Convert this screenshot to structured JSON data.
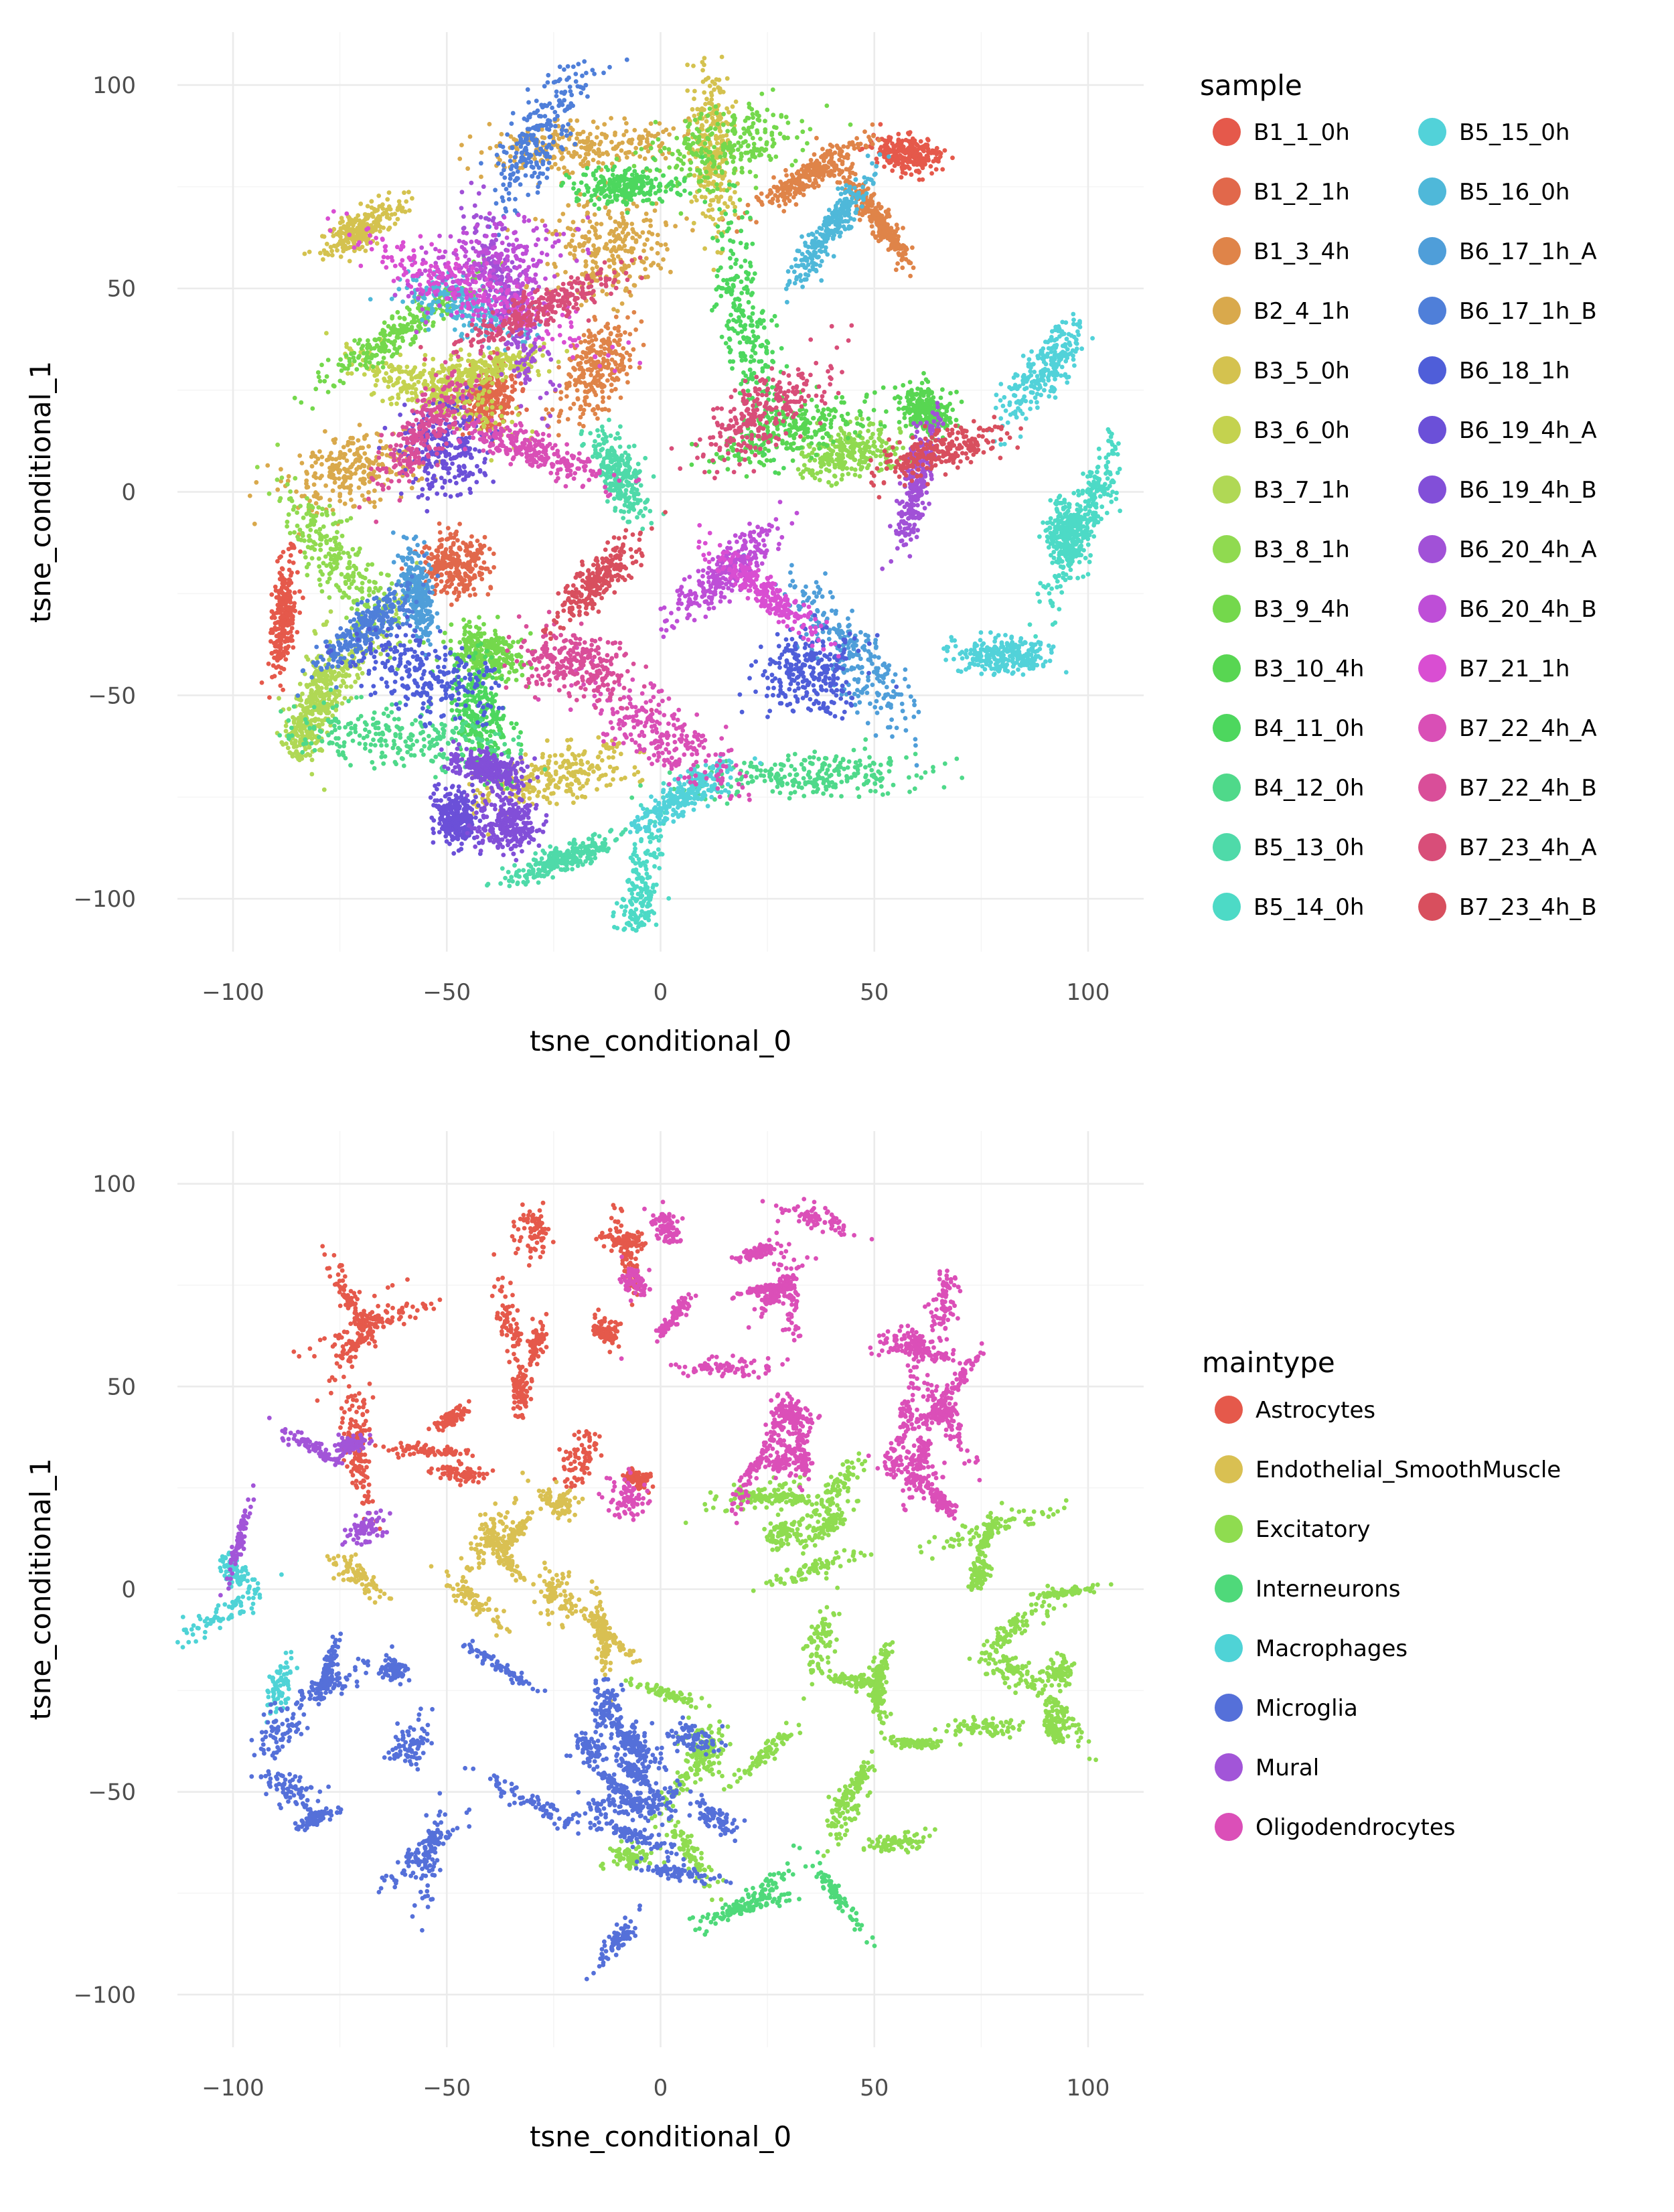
{
  "chart_data": [
    {
      "type": "scatter",
      "title": "",
      "xlabel": "tsne_conditional_0",
      "ylabel": "tsne_conditional_1",
      "xlim": [
        -113,
        113
      ],
      "ylim": [
        -113,
        113
      ],
      "x_ticks": [
        -100,
        -50,
        0,
        50,
        100
      ],
      "y_ticks": [
        -100,
        -50,
        0,
        50,
        100
      ],
      "x_tick_labels": [
        "−100",
        "−50",
        "0",
        "50",
        "100"
      ],
      "y_tick_labels": [
        "−100",
        "−50",
        "0",
        "50",
        "100"
      ],
      "grid": true,
      "legend_title": "sample",
      "legend_position": "right",
      "legend_columns": 2,
      "series": [
        {
          "name": "B1_1_0h",
          "color": "#e5594b",
          "centers": [
            [
              58,
              83
            ],
            [
              -88,
              -30
            ]
          ]
        },
        {
          "name": "B1_2_1h",
          "color": "#e1684b",
          "centers": [
            [
              -48,
              -18
            ],
            [
              -40,
              23
            ]
          ]
        },
        {
          "name": "B1_3_4h",
          "color": "#df8449",
          "centers": [
            [
              -15,
              30
            ],
            [
              35,
              78
            ],
            [
              50,
              68
            ]
          ]
        },
        {
          "name": "B2_4_1h",
          "color": "#d9a94c",
          "centers": [
            [
              -18,
              85
            ],
            [
              -12,
              60
            ],
            [
              -72,
              5
            ]
          ]
        },
        {
          "name": "B3_5_0h",
          "color": "#d4c24f",
          "centers": [
            [
              -70,
              65
            ],
            [
              12,
              85
            ],
            [
              -25,
              -70
            ]
          ]
        },
        {
          "name": "B3_6_0h",
          "color": "#c4d24f",
          "centers": [
            [
              -55,
              25
            ],
            [
              -42,
              30
            ]
          ]
        },
        {
          "name": "B3_7_1h",
          "color": "#b0d855",
          "centers": [
            [
              -78,
              -50
            ],
            [
              -82,
              -55
            ]
          ]
        },
        {
          "name": "B3_8_1h",
          "color": "#90da50",
          "centers": [
            [
              -75,
              -17
            ],
            [
              45,
              10
            ]
          ]
        },
        {
          "name": "B3_9_4h",
          "color": "#74d84c",
          "centers": [
            [
              -60,
              40
            ],
            [
              15,
              85
            ],
            [
              -40,
              -40
            ]
          ]
        },
        {
          "name": "B3_10_4h",
          "color": "#58d652",
          "centers": [
            [
              30,
              15
            ],
            [
              62,
              20
            ]
          ]
        },
        {
          "name": "B4_11_0h",
          "color": "#4dd75e",
          "centers": [
            [
              -42,
              -55
            ],
            [
              -8,
              75
            ],
            [
              20,
              40
            ]
          ]
        },
        {
          "name": "B4_12_0h",
          "color": "#4fd98a",
          "centers": [
            [
              -62,
              -60
            ],
            [
              35,
              -70
            ]
          ]
        },
        {
          "name": "B5_13_0h",
          "color": "#4fdaa9",
          "centers": [
            [
              -10,
              5
            ],
            [
              -22,
              -90
            ]
          ]
        },
        {
          "name": "B5_14_0h",
          "color": "#4ddac6",
          "centers": [
            [
              -5,
              -101
            ],
            [
              100,
              -5
            ],
            [
              95,
              -10
            ]
          ]
        },
        {
          "name": "B5_15_0h",
          "color": "#52d2d9",
          "centers": [
            [
              90,
              30
            ],
            [
              80,
              -40
            ],
            [
              5,
              -75
            ]
          ]
        },
        {
          "name": "B5_16_0h",
          "color": "#4fb8d9",
          "centers": [
            [
              40,
              65
            ],
            [
              -45,
              45
            ]
          ]
        },
        {
          "name": "B6_17_1h_A",
          "color": "#4f9ed9",
          "centers": [
            [
              -57,
              -25
            ],
            [
              45,
              -40
            ]
          ]
        },
        {
          "name": "B6_17_1h_B",
          "color": "#4f7fd9",
          "centers": [
            [
              -28,
              88
            ],
            [
              -68,
              -33
            ]
          ]
        },
        {
          "name": "B6_18_1h",
          "color": "#4f5ed9",
          "centers": [
            [
              35,
              -45
            ],
            [
              -55,
              -45
            ]
          ]
        },
        {
          "name": "B6_19_4h_A",
          "color": "#6b50d8",
          "centers": [
            [
              -50,
              10
            ],
            [
              -48,
              -80
            ]
          ]
        },
        {
          "name": "B6_19_4h_B",
          "color": "#824fd8",
          "centers": [
            [
              -40,
              -68
            ],
            [
              -35,
              -82
            ]
          ]
        },
        {
          "name": "B6_20_4h_A",
          "color": "#a151d7",
          "centers": [
            [
              -35,
              45
            ],
            [
              60,
              2
            ]
          ]
        },
        {
          "name": "B6_20_4h_B",
          "color": "#be4ed7",
          "centers": [
            [
              15,
              -20
            ],
            [
              -40,
              55
            ]
          ]
        },
        {
          "name": "B7_21_1h",
          "color": "#d94ed2",
          "centers": [
            [
              -45,
              50
            ],
            [
              25,
              -25
            ]
          ]
        },
        {
          "name": "B7_22_4h_A",
          "color": "#d94fb6",
          "centers": [
            [
              0,
              -60
            ],
            [
              -30,
              10
            ]
          ]
        },
        {
          "name": "B7_22_4h_B",
          "color": "#d94e99",
          "centers": [
            [
              -20,
              -42
            ],
            [
              -55,
              15
            ]
          ]
        },
        {
          "name": "B7_23_4h_A",
          "color": "#d84e79",
          "centers": [
            [
              25,
              20
            ],
            [
              -28,
              45
            ]
          ]
        },
        {
          "name": "B7_23_4h_B",
          "color": "#d84f5e",
          "centers": [
            [
              -15,
              -22
            ],
            [
              65,
              10
            ]
          ]
        }
      ]
    },
    {
      "type": "scatter",
      "title": "",
      "xlabel": "tsne_conditional_0",
      "ylabel": "tsne_conditional_1",
      "xlim": [
        -113,
        113
      ],
      "ylim": [
        -113,
        113
      ],
      "x_ticks": [
        -100,
        -50,
        0,
        50,
        100
      ],
      "y_ticks": [
        -100,
        -50,
        0,
        50,
        100
      ],
      "x_tick_labels": [
        "−100",
        "−50",
        "0",
        "50",
        "100"
      ],
      "y_tick_labels": [
        "−100",
        "−50",
        "0",
        "50",
        "100"
      ],
      "grid": true,
      "legend_title": "maintype",
      "legend_position": "right",
      "legend_columns": 1,
      "series": [
        {
          "name": "Astrocytes",
          "color": "#e5594b",
          "region": {
            "x": [
              -75,
              -5
            ],
            "y": [
              20,
              98
            ]
          }
        },
        {
          "name": "Endothelial_SmoothMuscle",
          "color": "#d9c052",
          "region": {
            "x": [
              -88,
              -8
            ],
            "y": [
              -12,
              22
            ]
          }
        },
        {
          "name": "Excitatory",
          "color": "#8fdc50",
          "region": {
            "x": [
              -8,
              100
            ],
            "y": [
              -68,
              25
            ]
          }
        },
        {
          "name": "Interneurons",
          "color": "#4fd97a",
          "region": {
            "x": [
              18,
              42
            ],
            "y": [
              -88,
              -60
            ]
          }
        },
        {
          "name": "Macrophages",
          "color": "#4fd3d6",
          "region": {
            "x": [
              -105,
              -84
            ],
            "y": [
              -25,
              5
            ]
          }
        },
        {
          "name": "Microglia",
          "color": "#5570d9",
          "region": {
            "x": [
              -90,
              15
            ],
            "y": [
              -102,
              -12
            ]
          }
        },
        {
          "name": "Mural",
          "color": "#a255d8",
          "region": {
            "x": [
              -102,
              -68
            ],
            "y": [
              5,
              45
            ]
          }
        },
        {
          "name": "Oligodendrocytes",
          "color": "#db4fb8",
          "region": {
            "x": [
              -12,
              95
            ],
            "y": [
              20,
              102
            ]
          }
        }
      ]
    }
  ]
}
